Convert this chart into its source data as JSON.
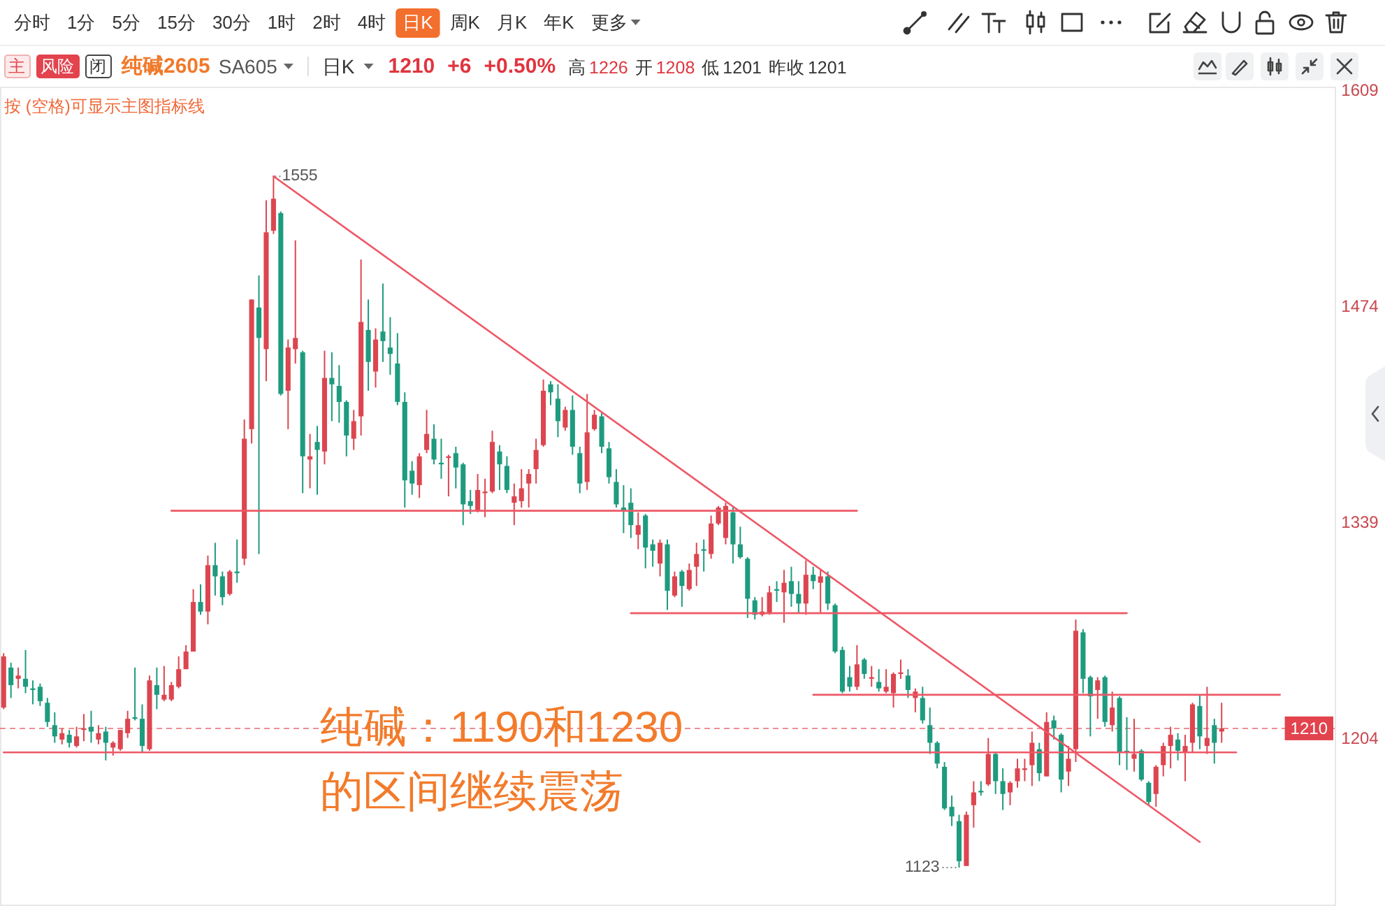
{
  "chart_data": {
    "type": "candlestick",
    "title": "纯碱2605",
    "subtitle": "SA605",
    "tick_labels": "y",
    "categories": [
      null,
      null,
      null,
      null,
      null,
      null,
      null,
      null,
      null,
      null,
      null,
      null,
      null,
      null,
      null,
      null,
      null,
      null,
      null,
      null,
      null,
      null,
      null,
      null,
      null,
      null,
      null,
      null,
      null,
      null,
      null,
      null,
      null,
      null,
      null,
      null,
      null,
      null,
      null,
      null,
      null,
      null,
      null,
      null,
      null,
      null,
      null,
      null,
      null,
      null,
      null,
      null,
      null,
      null,
      null,
      null,
      null,
      null,
      null,
      null,
      null,
      null,
      null,
      null,
      null,
      null,
      null,
      null,
      null,
      null,
      null,
      null,
      null,
      null,
      null,
      null,
      null,
      null,
      null,
      null,
      null,
      null,
      null,
      null,
      null,
      null,
      null,
      null,
      null,
      null,
      null,
      null,
      null,
      null,
      null,
      null,
      null,
      null,
      null,
      null,
      null,
      null,
      null,
      null,
      null,
      null,
      null,
      null,
      null,
      null,
      null,
      null,
      null,
      null,
      null,
      null,
      null,
      null,
      null,
      null,
      null,
      null,
      null,
      null,
      null,
      null,
      null,
      null,
      null,
      null,
      null,
      null,
      null,
      null,
      null,
      null,
      null,
      null,
      null,
      null,
      null,
      null,
      null,
      null,
      null,
      null,
      null,
      null,
      null,
      null,
      null,
      null,
      null,
      null,
      null,
      null,
      null,
      null,
      null,
      null,
      null,
      null,
      null,
      null,
      null,
      null,
      null,
      null,
      null,
      null,
      null,
      null,
      null,
      null,
      null,
      null,
      null,
      null,
      null,
      null,
      null,
      null,
      null
    ],
    "ohlc": [
      [
        1223,
        1257,
        1222,
        1255
      ],
      [
        1248,
        1251,
        1229,
        1237
      ],
      [
        1241,
        1248,
        1235,
        1243
      ],
      [
        1241,
        1259,
        1232,
        1236
      ],
      [
        1235,
        1240,
        1225,
        1234
      ],
      [
        1236,
        1238,
        1224,
        1227
      ],
      [
        1226,
        1229,
        1211,
        1214
      ],
      [
        1212,
        1220,
        1201,
        1205
      ],
      [
        1203,
        1210,
        1200,
        1207
      ],
      [
        1206,
        1209,
        1198,
        1201
      ],
      [
        1199,
        1211,
        1198,
        1205
      ],
      [
        1209,
        1219,
        1202,
        1210
      ],
      [
        1211,
        1221,
        1201,
        1208
      ],
      [
        1203,
        1212,
        1200,
        1207
      ],
      [
        1208,
        1211,
        1190,
        1201
      ],
      [
        1198,
        1202,
        1193,
        1201
      ],
      [
        1197,
        1209,
        1196,
        1209
      ],
      [
        1207,
        1221,
        1204,
        1216
      ],
      [
        1217,
        1248,
        1215,
        1216
      ],
      [
        1216,
        1225,
        1195,
        1199
      ],
      [
        1197,
        1243,
        1196,
        1240
      ],
      [
        1237,
        1248,
        1222,
        1231
      ],
      [
        1228,
        1249,
        1227,
        1231
      ],
      [
        1228,
        1239,
        1227,
        1237
      ],
      [
        1236,
        1255,
        1235,
        1247
      ],
      [
        1247,
        1262,
        1247,
        1258
      ],
      [
        1258,
        1297,
        1258,
        1289
      ],
      [
        1289,
        1300,
        1281,
        1283
      ],
      [
        1283,
        1318,
        1275,
        1312
      ],
      [
        1312,
        1326,
        1293,
        1305
      ],
      [
        1305,
        1308,
        1287,
        1292
      ],
      [
        1294,
        1309,
        1293,
        1308
      ],
      [
        1308,
        1328,
        1301,
        1307
      ],
      [
        1316,
        1403,
        1312,
        1391
      ],
      [
        1397,
        1478,
        1388,
        1478
      ],
      [
        1473,
        1493,
        1319,
        1454
      ],
      [
        1447,
        1540,
        1427,
        1520
      ],
      [
        1521,
        1555,
        1519,
        1541
      ],
      [
        1532,
        1533,
        1418,
        1419
      ],
      [
        1421,
        1453,
        1397,
        1448
      ],
      [
        1447,
        1515,
        1438,
        1454
      ],
      [
        1445,
        1446,
        1357,
        1380
      ],
      [
        1378,
        1394,
        1360,
        1380
      ],
      [
        1389,
        1399,
        1356,
        1384
      ],
      [
        1383,
        1446,
        1375,
        1429
      ],
      [
        1429,
        1445,
        1402,
        1425
      ],
      [
        1424,
        1437,
        1401,
        1414
      ],
      [
        1414,
        1415,
        1380,
        1393
      ],
      [
        1391,
        1409,
        1384,
        1402
      ],
      [
        1405,
        1503,
        1393,
        1464
      ],
      [
        1459,
        1478,
        1421,
        1439
      ],
      [
        1433,
        1460,
        1423,
        1453
      ],
      [
        1458,
        1488,
        1439,
        1452
      ],
      [
        1448,
        1467,
        1431,
        1444
      ],
      [
        1438,
        1457,
        1412,
        1414
      ],
      [
        1414,
        1420,
        1348,
        1365
      ],
      [
        1371,
        1377,
        1356,
        1363
      ],
      [
        1362,
        1382,
        1354,
        1380
      ],
      [
        1384,
        1409,
        1382,
        1394
      ],
      [
        1391,
        1400,
        1375,
        1378
      ],
      [
        1376,
        1391,
        1366,
        1375
      ],
      [
        1379,
        1381,
        1355,
        1380
      ],
      [
        1382,
        1386,
        1360,
        1373
      ],
      [
        1375,
        1376,
        1337,
        1350
      ],
      [
        1352,
        1359,
        1344,
        1349
      ],
      [
        1346,
        1369,
        1345,
        1359
      ],
      [
        1357,
        1366,
        1342,
        1358
      ],
      [
        1358,
        1396,
        1357,
        1389
      ],
      [
        1383,
        1387,
        1359,
        1375
      ],
      [
        1374,
        1380,
        1357,
        1359
      ],
      [
        1351,
        1363,
        1337,
        1355
      ],
      [
        1352,
        1372,
        1348,
        1360
      ],
      [
        1363,
        1372,
        1348,
        1369
      ],
      [
        1372,
        1391,
        1363,
        1384
      ],
      [
        1387,
        1428,
        1386,
        1421
      ],
      [
        1425,
        1427,
        1412,
        1420
      ],
      [
        1416,
        1425,
        1392,
        1402
      ],
      [
        1398,
        1411,
        1396,
        1409
      ],
      [
        1409,
        1418,
        1381,
        1386
      ],
      [
        1382,
        1386,
        1357,
        1363
      ],
      [
        1364,
        1419,
        1359,
        1395
      ],
      [
        1397,
        1409,
        1396,
        1406
      ],
      [
        1405,
        1407,
        1382,
        1386
      ],
      [
        1385,
        1389,
        1363,
        1367
      ],
      [
        1364,
        1372,
        1348,
        1350
      ],
      [
        1348,
        1362,
        1332,
        1346
      ],
      [
        1351,
        1360,
        1329,
        1337
      ],
      [
        1331,
        1345,
        1322,
        1337
      ],
      [
        1343,
        1344,
        1310,
        1323
      ],
      [
        1325,
        1328,
        1311,
        1321
      ],
      [
        1313,
        1328,
        1305,
        1326
      ],
      [
        1325,
        1328,
        1284,
        1296
      ],
      [
        1293,
        1308,
        1292,
        1305
      ],
      [
        1308,
        1309,
        1286,
        1299
      ],
      [
        1297,
        1313,
        1296,
        1309
      ],
      [
        1311,
        1326,
        1299,
        1319
      ],
      [
        1322,
        1328,
        1308,
        1321
      ],
      [
        1319,
        1343,
        1316,
        1338
      ],
      [
        1338,
        1349,
        1337,
        1348
      ],
      [
        1329,
        1351,
        1325,
        1349
      ],
      [
        1345,
        1348,
        1313,
        1325
      ],
      [
        1325,
        1336,
        1316,
        1317
      ],
      [
        1316,
        1317,
        1279,
        1291
      ],
      [
        1290,
        1292,
        1278,
        1281
      ],
      [
        1281,
        1292,
        1280,
        1283
      ],
      [
        1282,
        1299,
        1281,
        1295
      ],
      [
        1297,
        1302,
        1289,
        1296
      ],
      [
        1295,
        1309,
        1276,
        1301
      ],
      [
        1302,
        1311,
        1286,
        1294
      ],
      [
        1294,
        1302,
        1282,
        1288
      ],
      [
        1288,
        1315,
        1281,
        1306
      ],
      [
        1306,
        1311,
        1297,
        1302
      ],
      [
        1301,
        1309,
        1282,
        1305
      ],
      [
        1305,
        1308,
        1284,
        1288
      ],
      [
        1287,
        1288,
        1257,
        1258
      ],
      [
        1259,
        1261,
        1232,
        1233
      ],
      [
        1242,
        1249,
        1233,
        1236
      ],
      [
        1236,
        1262,
        1234,
        1250
      ],
      [
        1253,
        1254,
        1241,
        1244
      ],
      [
        1241,
        1249,
        1236,
        1242
      ],
      [
        1239,
        1247,
        1233,
        1235
      ],
      [
        1233,
        1247,
        1232,
        1236
      ],
      [
        1232,
        1245,
        1223,
        1244
      ],
      [
        1244,
        1253,
        1241,
        1245
      ],
      [
        1243,
        1247,
        1229,
        1234
      ],
      [
        1229,
        1235,
        1220,
        1233
      ],
      [
        1229,
        1236,
        1213,
        1215
      ],
      [
        1212,
        1223,
        1194,
        1201
      ],
      [
        1201,
        1202,
        1185,
        1188
      ],
      [
        1186,
        1189,
        1159,
        1160
      ],
      [
        1161,
        1168,
        1149,
        1155
      ],
      [
        1152,
        1156,
        1123,
        1127
      ],
      [
        1124,
        1158,
        1124,
        1156
      ],
      [
        1162,
        1177,
        1148,
        1170
      ],
      [
        1171,
        1177,
        1168,
        1170
      ],
      [
        1175,
        1204,
        1174,
        1194
      ],
      [
        1194,
        1195,
        1169,
        1177
      ],
      [
        1177,
        1185,
        1159,
        1169
      ],
      [
        1170,
        1177,
        1162,
        1176
      ],
      [
        1177,
        1191,
        1173,
        1185
      ],
      [
        1184,
        1191,
        1177,
        1185
      ],
      [
        1187,
        1208,
        1174,
        1201
      ],
      [
        1197,
        1201,
        1177,
        1182
      ],
      [
        1180,
        1220,
        1180,
        1214
      ],
      [
        1215,
        1218,
        1203,
        1210
      ],
      [
        1206,
        1207,
        1170,
        1178
      ],
      [
        1183,
        1199,
        1174,
        1191
      ],
      [
        1197,
        1278,
        1189,
        1271
      ],
      [
        1270,
        1272,
        1232,
        1241
      ],
      [
        1242,
        1243,
        1205,
        1230
      ],
      [
        1234,
        1242,
        1216,
        1240
      ],
      [
        1242,
        1243,
        1211,
        1214
      ],
      [
        1212,
        1233,
        1208,
        1223
      ],
      [
        1229,
        1230,
        1187,
        1195
      ],
      [
        1196,
        1217,
        1184,
        1195
      ],
      [
        1191,
        1216,
        1183,
        1194
      ],
      [
        1196,
        1197,
        1177,
        1178
      ],
      [
        1176,
        1177,
        1162,
        1164
      ],
      [
        1169,
        1187,
        1161,
        1186
      ],
      [
        1187,
        1201,
        1180,
        1199
      ],
      [
        1199,
        1211,
        1185,
        1206
      ],
      [
        1203,
        1207,
        1190,
        1196
      ],
      [
        1195,
        1206,
        1177,
        1199
      ],
      [
        1201,
        1226,
        1195,
        1225
      ],
      [
        1224,
        1231,
        1197,
        1205
      ],
      [
        1199,
        1236,
        1194,
        1204
      ],
      [
        1212,
        1216,
        1188,
        1201
      ],
      [
        1208,
        1226,
        1201,
        1210
      ],
      null,
      null,
      null,
      null,
      null,
      null,
      null,
      null,
      null,
      null,
      null,
      null,
      null,
      null,
      null
    ],
    "colors": [
      "#dc4650",
      "#1e9b7f",
      "#dc4650",
      "#1e9b7f",
      "#1e9b7f",
      "#1e9b7f",
      "#1e9b7f",
      "#1e9b7f",
      "#dc4650",
      "#1e9b7f",
      "#dc4650",
      "#dc4650",
      "#1e9b7f",
      "#dc4650",
      "#1e9b7f",
      "#dc4650",
      "#dc4650",
      "#dc4650",
      "#1e9b7f",
      "#1e9b7f",
      "#dc4650",
      "#1e9b7f",
      "#dc4650",
      "#dc4650",
      "#dc4650",
      "#dc4650",
      "#dc4650",
      "#1e9b7f",
      "#dc4650",
      "#1e9b7f",
      "#1e9b7f",
      "#dc4650",
      "#1e9b7f",
      "#dc4650",
      "#dc4650",
      "#1e9b7f",
      "#dc4650",
      "#dc4650",
      "#1e9b7f",
      "#dc4650",
      "#dc4650",
      "#1e9b7f",
      "#dc4650",
      "#1e9b7f",
      "#dc4650",
      "#1e9b7f",
      "#1e9b7f",
      "#1e9b7f",
      "#dc4650",
      "#dc4650",
      "#1e9b7f",
      "#dc4650",
      "#1e9b7f",
      "#1e9b7f",
      "#1e9b7f",
      "#1e9b7f",
      "#1e9b7f",
      "#dc4650",
      "#dc4650",
      "#1e9b7f",
      "#1e9b7f",
      "#dc4650",
      "#1e9b7f",
      "#1e9b7f",
      "#1e9b7f",
      "#dc4650",
      "#dc4650",
      "#dc4650",
      "#1e9b7f",
      "#1e9b7f",
      "#dc4650",
      "#dc4650",
      "#dc4650",
      "#dc4650",
      "#dc4650",
      "#1e9b7f",
      "#1e9b7f",
      "#dc4650",
      "#1e9b7f",
      "#1e9b7f",
      "#dc4650",
      "#dc4650",
      "#1e9b7f",
      "#1e9b7f",
      "#1e9b7f",
      "#1e9b7f",
      "#1e9b7f",
      "#dc4650",
      "#1e9b7f",
      "#1e9b7f",
      "#dc4650",
      "#1e9b7f",
      "#dc4650",
      "#1e9b7f",
      "#dc4650",
      "#dc4650",
      "#1e9b7f",
      "#dc4650",
      "#dc4650",
      "#dc4650",
      "#1e9b7f",
      "#1e9b7f",
      "#1e9b7f",
      "#1e9b7f",
      "#dc4650",
      "#dc4650",
      "#1e9b7f",
      "#dc4650",
      "#1e9b7f",
      "#1e9b7f",
      "#dc4650",
      "#1e9b7f",
      "#dc4650",
      "#1e9b7f",
      "#1e9b7f",
      "#1e9b7f",
      "#1e9b7f",
      "#dc4650",
      "#1e9b7f",
      "#dc4650",
      "#1e9b7f",
      "#dc4650",
      "#dc4650",
      "#dc4650",
      "#1e9b7f",
      "#dc4650",
      "#1e9b7f",
      "#1e9b7f",
      "#1e9b7f",
      "#1e9b7f",
      "#1e9b7f",
      "#1e9b7f",
      "#dc4650",
      "#dc4650",
      "#1e9b7f",
      "#dc4650",
      "#1e9b7f",
      "#1e9b7f",
      "#dc4650",
      "#dc4650",
      "#dc4650",
      "#dc4650",
      "#1e9b7f",
      "#dc4650",
      "#1e9b7f",
      "#1e9b7f",
      "#dc4650",
      "#dc4650",
      "#1e9b7f",
      "#1e9b7f",
      "#dc4650",
      "#1e9b7f",
      "#dc4650",
      "#1e9b7f",
      "#1e9b7f",
      "#dc4650",
      "#1e9b7f",
      "#1e9b7f",
      "#dc4650",
      "#dc4650",
      "#dc4650",
      "#1e9b7f",
      "#dc4650",
      "#dc4650",
      "#1e9b7f",
      "#dc4650",
      "#1e9b7f",
      "#dc4650",
      null,
      null,
      null,
      null,
      null,
      null,
      null,
      null,
      null,
      null,
      null,
      null,
      null,
      null,
      null
    ],
    "series": [
      {
        "type": "line",
        "color": "#ee5866",
        "values": [
          null,
          null,
          null,
          null,
          null,
          null,
          null,
          null,
          null,
          null,
          null,
          null,
          null,
          null,
          null,
          null,
          null,
          null,
          null,
          null,
          null,
          null,
          null,
          1346,
          null,
          null,
          null,
          null,
          null,
          null,
          null,
          null,
          null,
          null,
          null,
          null,
          null,
          null,
          null,
          null,
          null,
          null,
          null,
          null,
          null,
          null,
          null,
          null,
          null,
          null,
          null,
          null,
          null,
          null,
          null,
          null,
          null,
          null,
          null,
          null,
          null,
          null,
          null,
          null,
          null,
          null,
          null,
          null,
          null,
          null,
          null,
          null,
          null,
          null,
          null,
          null,
          null,
          null,
          null,
          null,
          null,
          null,
          null,
          null,
          null,
          null,
          null,
          null,
          null,
          null,
          null,
          null,
          null,
          null,
          null,
          null,
          null,
          null,
          null,
          null,
          null,
          null,
          null,
          null,
          null,
          null,
          null,
          null,
          null,
          null,
          null,
          null,
          null,
          null,
          null,
          null,
          null,
          1346,
          null,
          null,
          null,
          null,
          null,
          null,
          null,
          null,
          null,
          null,
          null,
          null,
          null,
          null,
          null,
          null,
          null,
          null,
          null,
          null,
          null,
          null,
          null,
          null,
          null,
          null,
          null,
          null,
          null,
          null,
          null,
          null,
          null,
          null,
          null,
          null,
          null,
          null,
          null,
          null,
          null,
          null,
          null,
          null,
          null,
          null,
          null,
          null,
          null,
          null,
          null,
          null,
          null,
          null,
          null,
          null,
          null,
          null,
          null,
          null,
          null,
          null,
          null,
          null,
          null
        ]
      },
      {
        "type": "line",
        "color": "#ee5866",
        "values": [
          null,
          null,
          null,
          null,
          null,
          null,
          null,
          null,
          null,
          null,
          null,
          null,
          null,
          null,
          null,
          null,
          null,
          null,
          null,
          null,
          null,
          null,
          null,
          null,
          null,
          null,
          null,
          null,
          null,
          null,
          null,
          null,
          null,
          null,
          null,
          null,
          null,
          null,
          null,
          null,
          null,
          null,
          null,
          null,
          null,
          null,
          null,
          null,
          null,
          null,
          null,
          null,
          null,
          null,
          null,
          null,
          null,
          null,
          null,
          null,
          null,
          null,
          null,
          null,
          null,
          null,
          null,
          null,
          null,
          null,
          null,
          null,
          null,
          null,
          null,
          null,
          null,
          null,
          null,
          null,
          null,
          null,
          null,
          null,
          null,
          null,
          1282,
          null,
          null,
          null,
          null,
          null,
          null,
          null,
          null,
          null,
          null,
          null,
          null,
          null,
          null,
          null,
          null,
          null,
          null,
          null,
          null,
          null,
          null,
          null,
          null,
          null,
          null,
          null,
          null,
          null,
          null,
          null,
          null,
          null,
          null,
          null,
          null,
          null,
          null,
          null,
          null,
          null,
          null,
          null,
          null,
          null,
          null,
          null,
          null,
          null,
          null,
          null,
          null,
          null,
          null,
          null,
          null,
          null,
          null,
          null,
          null,
          null,
          null,
          null,
          null,
          null,
          null,
          null,
          1282,
          null,
          null,
          null,
          null,
          null,
          null,
          null,
          null,
          null,
          null,
          null,
          null,
          null,
          null,
          null,
          null,
          null,
          null,
          null,
          null,
          null,
          null,
          null,
          null,
          null,
          null,
          null,
          null
        ]
      },
      {
        "type": "line",
        "color": "#ee5866",
        "values": [
          null,
          null,
          null,
          null,
          null,
          null,
          null,
          null,
          null,
          null,
          null,
          null,
          null,
          null,
          null,
          null,
          null,
          null,
          null,
          null,
          null,
          null,
          null,
          null,
          null,
          null,
          null,
          null,
          null,
          null,
          null,
          null,
          null,
          null,
          null,
          null,
          null,
          null,
          null,
          null,
          null,
          null,
          null,
          null,
          null,
          null,
          null,
          null,
          null,
          null,
          null,
          null,
          null,
          null,
          null,
          null,
          null,
          null,
          null,
          null,
          null,
          null,
          null,
          null,
          null,
          null,
          null,
          null,
          null,
          null,
          null,
          null,
          null,
          null,
          null,
          null,
          null,
          null,
          null,
          null,
          null,
          null,
          null,
          null,
          null,
          null,
          null,
          null,
          null,
          null,
          null,
          null,
          null,
          null,
          null,
          null,
          null,
          null,
          null,
          null,
          null,
          null,
          null,
          null,
          null,
          null,
          null,
          null,
          null,
          null,
          null,
          1231,
          null,
          null,
          null,
          null,
          null,
          null,
          null,
          null,
          null,
          null,
          null,
          null,
          null,
          null,
          null,
          null,
          null,
          null,
          null,
          null,
          null,
          null,
          null,
          null,
          null,
          null,
          null,
          null,
          null,
          null,
          null,
          null,
          null,
          null,
          null,
          null,
          null,
          null,
          null,
          null,
          null,
          null,
          null,
          null,
          null,
          null,
          null,
          null,
          null,
          null,
          null,
          null,
          null,
          null,
          null,
          null,
          null,
          null,
          null,
          null,
          null,
          null,
          null,
          1231,
          null,
          null,
          null,
          null,
          null,
          null,
          null
        ]
      },
      {
        "type": "line",
        "color": "#ee5866",
        "values": [
          1195,
          null,
          null,
          null,
          null,
          null,
          null,
          null,
          null,
          null,
          null,
          null,
          null,
          null,
          null,
          null,
          null,
          null,
          null,
          null,
          null,
          null,
          null,
          null,
          null,
          null,
          null,
          null,
          null,
          null,
          null,
          null,
          null,
          null,
          null,
          null,
          null,
          null,
          null,
          null,
          null,
          null,
          null,
          null,
          null,
          null,
          null,
          null,
          null,
          null,
          null,
          null,
          null,
          null,
          null,
          null,
          null,
          null,
          null,
          null,
          null,
          null,
          null,
          null,
          null,
          null,
          null,
          null,
          null,
          null,
          null,
          null,
          null,
          null,
          null,
          null,
          null,
          null,
          null,
          null,
          null,
          null,
          null,
          null,
          null,
          null,
          null,
          null,
          null,
          null,
          null,
          null,
          null,
          null,
          null,
          null,
          null,
          null,
          null,
          null,
          null,
          null,
          null,
          null,
          null,
          null,
          null,
          null,
          null,
          null,
          null,
          null,
          null,
          null,
          null,
          null,
          null,
          null,
          null,
          null,
          null,
          null,
          null,
          null,
          null,
          null,
          null,
          null,
          null,
          null,
          null,
          null,
          null,
          null,
          null,
          null,
          null,
          null,
          null,
          null,
          null,
          null,
          null,
          null,
          null,
          null,
          null,
          null,
          null,
          null,
          null,
          null,
          null,
          null,
          null,
          null,
          null,
          null,
          null,
          null,
          null,
          null,
          null,
          null,
          null,
          null,
          null,
          null,
          null,
          1195,
          null,
          null,
          null,
          null,
          null,
          null,
          null,
          null,
          null,
          null,
          null,
          null,
          null
        ]
      },
      {
        "type": "line",
        "color": "#ee5866",
        "values": [
          null,
          null,
          null,
          null,
          null,
          null,
          null,
          null,
          null,
          null,
          null,
          null,
          null,
          null,
          null,
          null,
          null,
          null,
          null,
          null,
          null,
          null,
          null,
          null,
          null,
          null,
          null,
          null,
          null,
          null,
          null,
          null,
          null,
          null,
          null,
          null,
          null,
          1555,
          null,
          null,
          null,
          null,
          null,
          null,
          null,
          null,
          null,
          null,
          null,
          null,
          null,
          null,
          null,
          null,
          null,
          null,
          null,
          null,
          null,
          null,
          null,
          null,
          null,
          null,
          null,
          null,
          null,
          null,
          null,
          null,
          null,
          null,
          null,
          null,
          null,
          null,
          null,
          null,
          null,
          null,
          null,
          null,
          null,
          null,
          null,
          null,
          null,
          null,
          null,
          null,
          null,
          null,
          null,
          null,
          null,
          null,
          null,
          null,
          null,
          null,
          null,
          null,
          null,
          null,
          null,
          null,
          null,
          null,
          null,
          null,
          null,
          null,
          null,
          null,
          null,
          null,
          null,
          null,
          null,
          null,
          null,
          null,
          null,
          null,
          null,
          null,
          null,
          null,
          null,
          null,
          null,
          null,
          null,
          null,
          null,
          null,
          null,
          null,
          null,
          null,
          null,
          null,
          null,
          null,
          null,
          null,
          null,
          null,
          null,
          null,
          null,
          null,
          null,
          null,
          null,
          null,
          null,
          null,
          null,
          null,
          null,
          null,
          null,
          null,
          1139,
          null,
          null,
          null,
          null,
          null,
          null,
          null,
          null,
          null,
          null,
          null,
          null,
          null,
          null,
          null,
          null,
          null,
          null
        ]
      }
    ],
    "ylim": [
      1099,
      1611
    ],
    "yticks": [
      1609,
      1474,
      1339,
      1204
    ],
    "ref_lines": [
      {
        "axis": "y",
        "value": 1210,
        "label": "1210",
        "color": "#e2434d",
        "line_style": "dashed"
      }
    ],
    "annotations": [
      "分时",
      "1分",
      "5分",
      "15分",
      "30分",
      "1时",
      "2时",
      "4时",
      "日K",
      "周K",
      "月K",
      "年K",
      "更多",
      "主",
      "风险",
      "闭",
      "日K",
      "1210",
      "+6",
      "+0.50%",
      "高",
      "1226",
      "开",
      "1208",
      "低",
      "1201",
      "昨收",
      "1201",
      "按 (空格)可显示主图指标线",
      "纯碱：1190和1230",
      "的区间继续震荡",
      "1555",
      "1123"
    ]
  }
}
